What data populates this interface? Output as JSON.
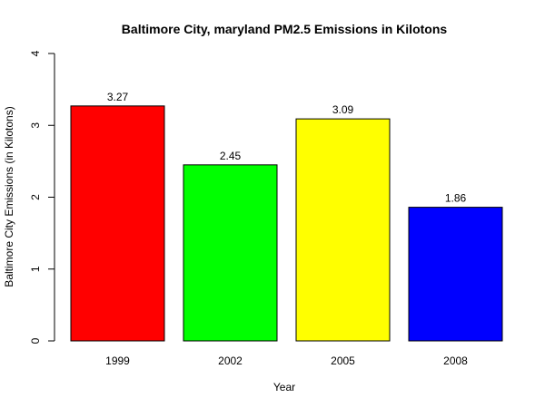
{
  "chart_data": {
    "type": "bar",
    "title": "Baltimore City, maryland PM2.5 Emissions in Kilotons",
    "xlabel": "Year",
    "ylabel": "Baltimore City Emissions (in Kilotons)",
    "categories": [
      "1999",
      "2002",
      "2005",
      "2008"
    ],
    "values": [
      3.27,
      2.45,
      3.09,
      1.86
    ],
    "data_labels": [
      "3.27",
      "2.45",
      "3.09",
      "1.86"
    ],
    "colors": [
      "#ff0000",
      "#00ff00",
      "#ffff00",
      "#0000ff"
    ],
    "ylim": [
      0,
      4
    ],
    "yticks": [
      0,
      1,
      2,
      3,
      4
    ],
    "grid": false,
    "legend": "none"
  }
}
